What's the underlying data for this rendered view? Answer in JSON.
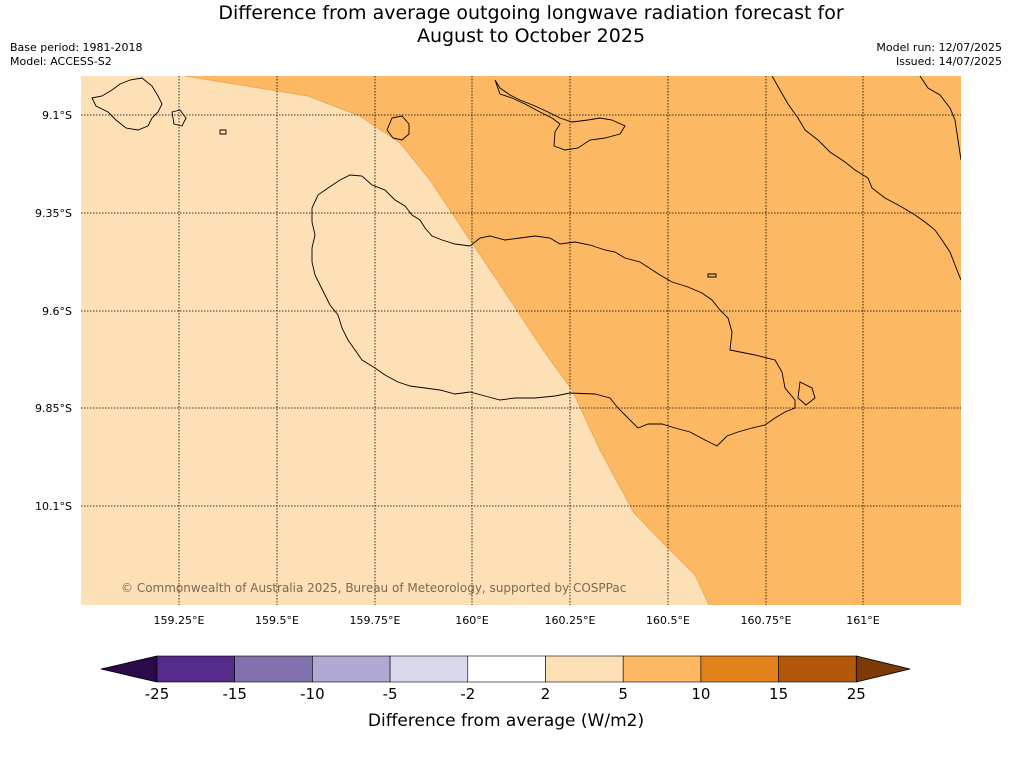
{
  "title_line1": "Difference from average outgoing longwave radiation forecast for",
  "title_line2": "August to October 2025",
  "base_period": "Base period: 1981-2018",
  "model": "Model: ACCESS-S2",
  "model_run": "Model run: 12/07/2025",
  "issued": "Issued: 14/07/2025",
  "copyright": "© Commonwealth of Australia 2025, Bureau of Meteorology, supported by COSPPac",
  "lat_labels": [
    "9.1°S",
    "9.35°S",
    "9.6°S",
    "9.85°S",
    "10.1°S"
  ],
  "lon_labels": [
    "159.25°E",
    "159.5°E",
    "159.75°E",
    "160°E",
    "160.25°E",
    "160.5°E",
    "160.75°E",
    "161°E"
  ],
  "colors": {
    "band_2_5": "#fde0b6",
    "band_5_10": "#fcb862"
  },
  "colorbar": {
    "title": "Difference from average (W/m2)",
    "ticks": [
      "-25",
      "-15",
      "-10",
      "-5",
      "-2",
      "2",
      "5",
      "10",
      "15",
      "25"
    ],
    "segment_colors": [
      "#552a8a",
      "#8172ad",
      "#b1a9d3",
      "#d9d9ed",
      "#ffffff",
      "#fde0b6",
      "#fcb862",
      "#e3821a",
      "#b25808"
    ],
    "low_extend_color": "#2c0a4a",
    "high_extend_color": "#7d3a07"
  }
}
